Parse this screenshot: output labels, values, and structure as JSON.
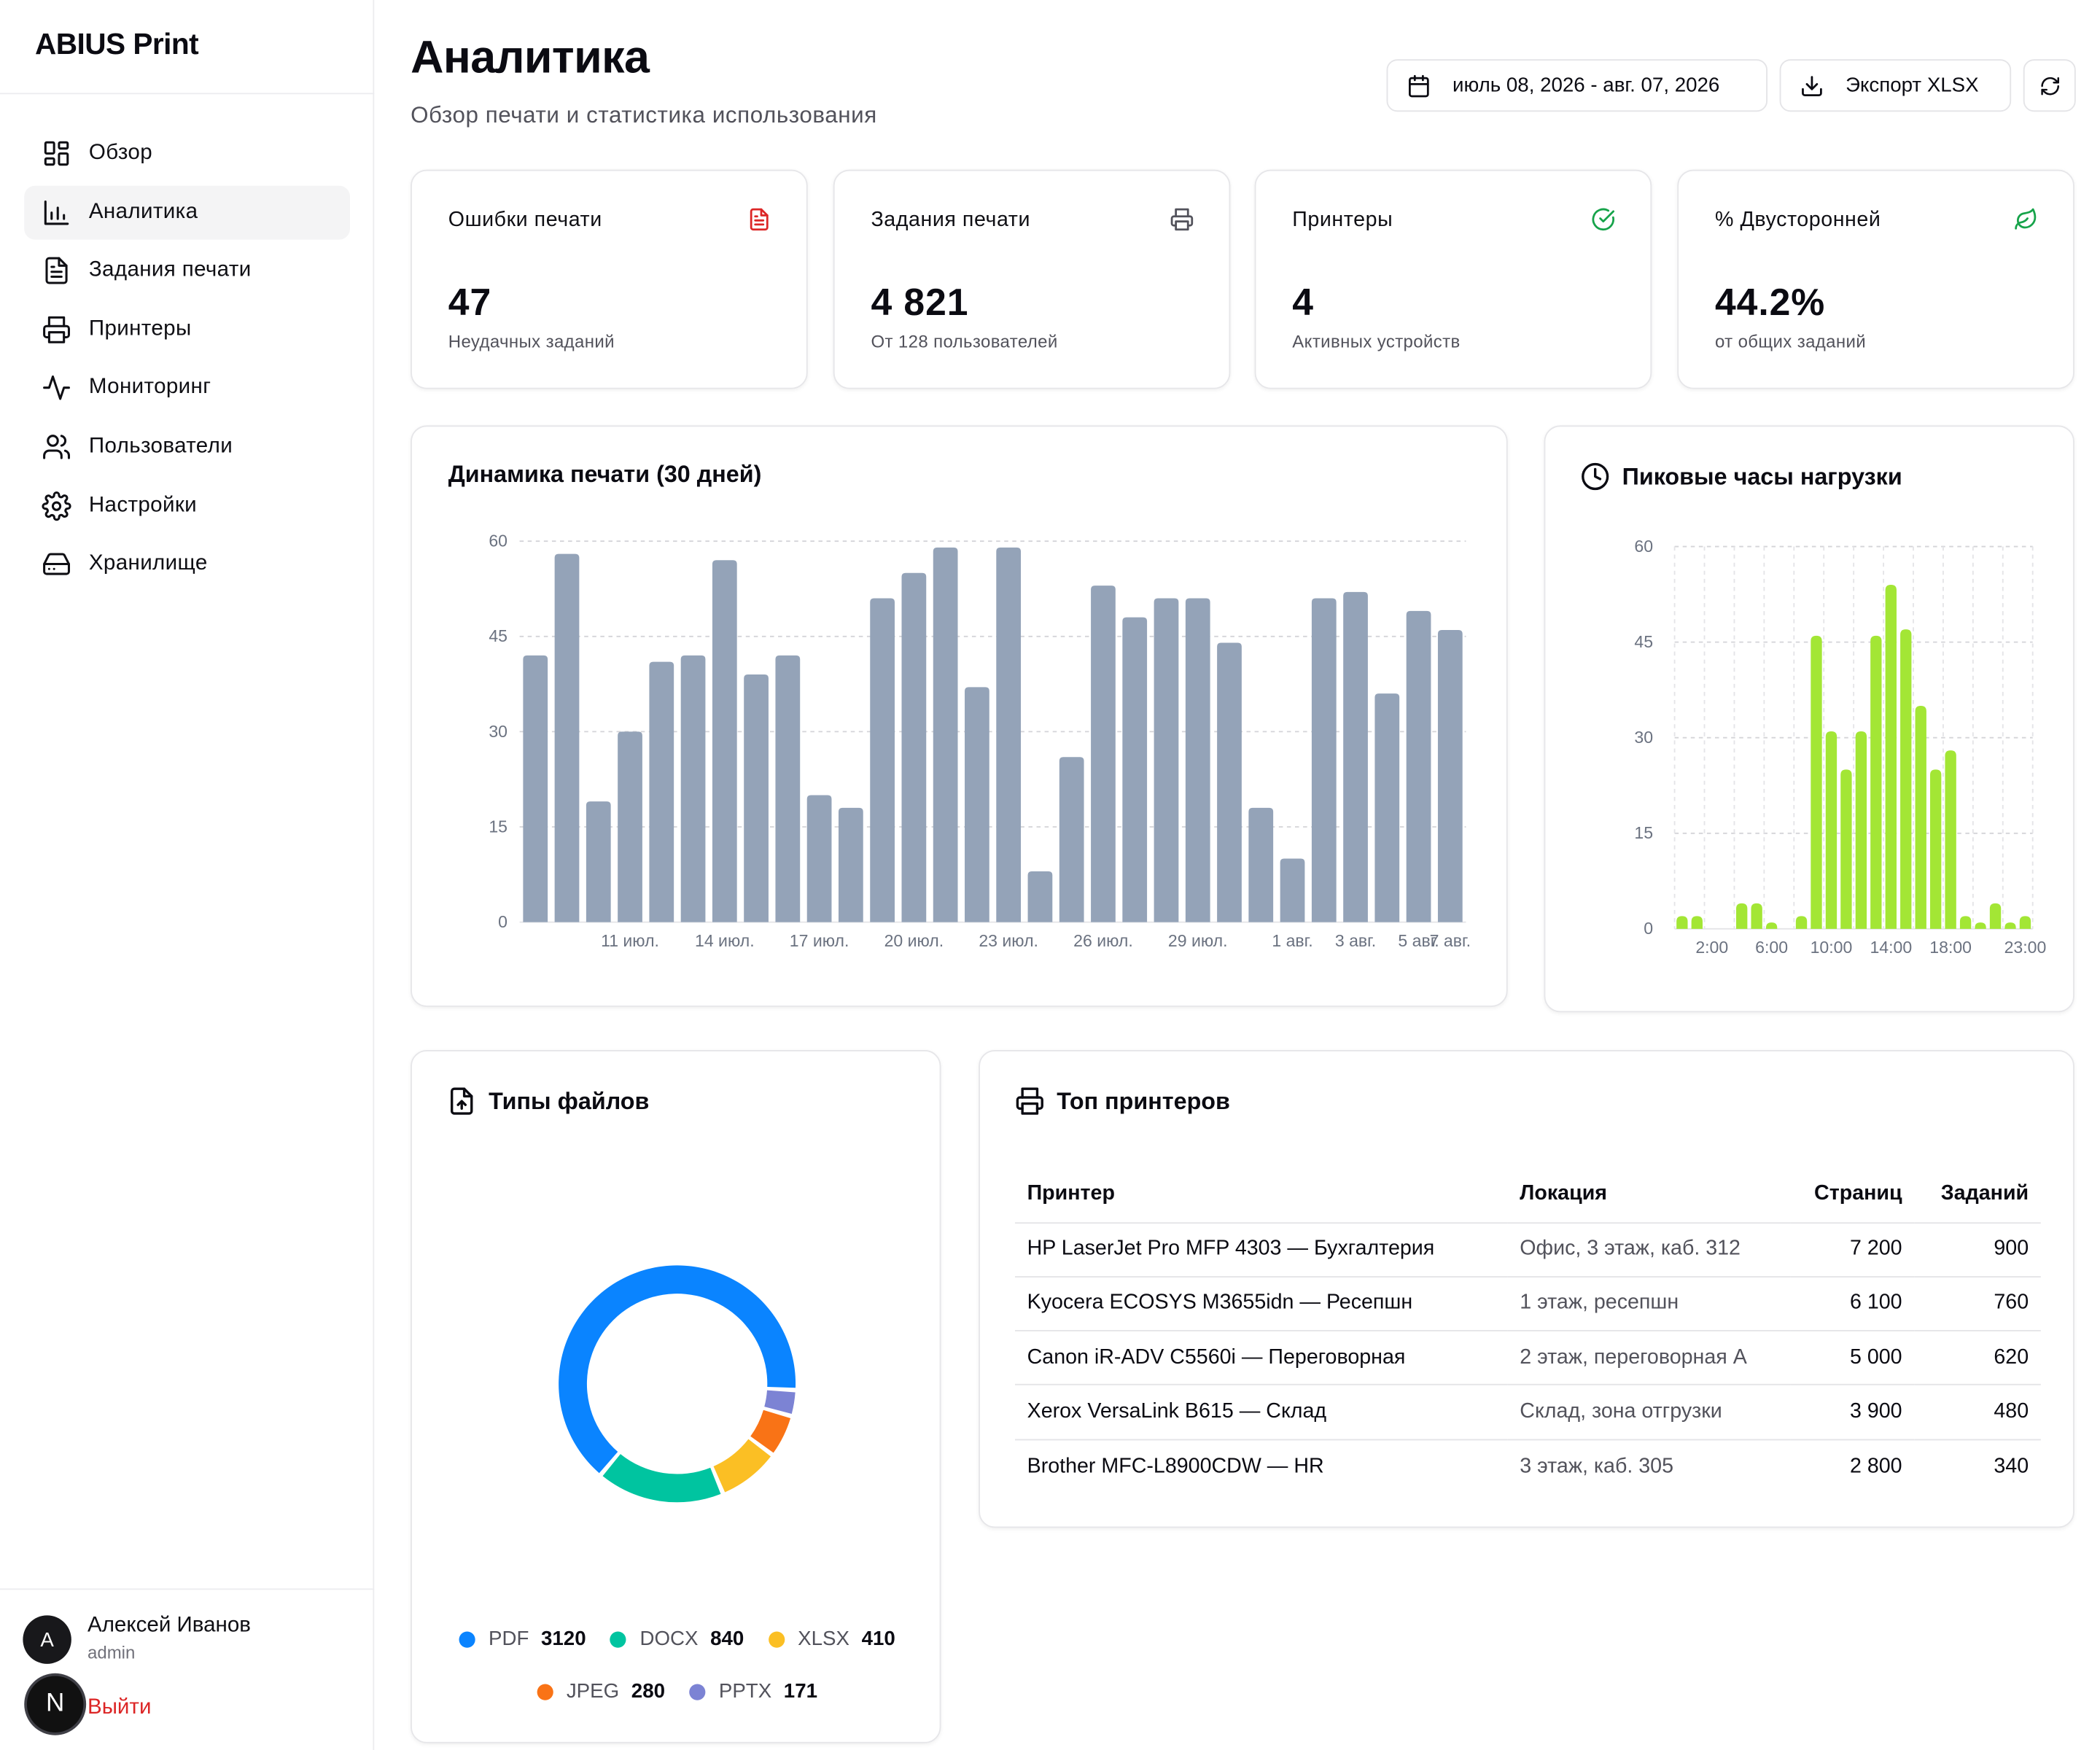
{
  "brand": "ABIUS Print",
  "nav": [
    {
      "label": "Обзор",
      "icon": "dashboard-icon",
      "active": false
    },
    {
      "label": "Аналитика",
      "icon": "bar-chart-icon",
      "active": true
    },
    {
      "label": "Задания печати",
      "icon": "file-text-icon",
      "active": false
    },
    {
      "label": "Принтеры",
      "icon": "printer-icon",
      "active": false
    },
    {
      "label": "Мониторинг",
      "icon": "activity-icon",
      "active": false
    },
    {
      "label": "Пользователи",
      "icon": "users-icon",
      "active": false
    },
    {
      "label": "Настройки",
      "icon": "gear-icon",
      "active": false
    },
    {
      "label": "Хранилище",
      "icon": "hard-drive-icon",
      "active": false
    }
  ],
  "user": {
    "initial": "A",
    "name": "Алексей Иванов",
    "role": "admin",
    "badge": "N",
    "logout": "Выйти"
  },
  "header": {
    "title": "Аналитика",
    "subtitle": "Обзор печати и статистика использования",
    "date_range": "июль 08, 2026 - авг. 07, 2026",
    "export_label": "Экспорт XLSX"
  },
  "stats": [
    {
      "title": "Ошибки печати",
      "value": "47",
      "sub": "Неудачных заданий",
      "icon": "file-error-icon",
      "color": "#dc2626"
    },
    {
      "title": "Задания печати",
      "value": "4 821",
      "sub": "От 128 пользователей",
      "icon": "printer-icon",
      "color": "#52525b"
    },
    {
      "title": "Принтеры",
      "value": "4",
      "sub": "Активных устройств",
      "icon": "check-circle-icon",
      "color": "#16a34a"
    },
    {
      "title": "% Двусторонней",
      "value": "44.2%",
      "sub": "от общих заданий",
      "icon": "leaf-icon",
      "color": "#16a34a"
    }
  ],
  "dynamics": {
    "title": "Динамика печати (30 дней)"
  },
  "peak": {
    "title": "Пиковые часы нагрузки"
  },
  "filetypes": {
    "title": "Типы файлов"
  },
  "top_printers": {
    "title": "Топ принтеров",
    "columns": [
      "Принтер",
      "Локация",
      "Страниц",
      "Заданий"
    ],
    "rows": [
      [
        "HP LaserJet Pro MFP 4303 — Бухгалтерия",
        "Офис, 3 этаж, каб. 312",
        "7 200",
        "900"
      ],
      [
        "Kyocera ECOSYS M3655idn — Ресепшн",
        "1 этаж, ресепшн",
        "6 100",
        "760"
      ],
      [
        "Canon iR-ADV C5560i — Переговорная",
        "2 этаж, переговорная А",
        "5 000",
        "620"
      ],
      [
        "Xerox VersaLink B615 — Склад",
        "Склад, зона отгрузки",
        "3 900",
        "480"
      ],
      [
        "Brother MFC-L8900CDW — HR",
        "3 этаж, каб. 305",
        "2 800",
        "340"
      ]
    ]
  },
  "chart_data": [
    {
      "type": "bar",
      "title": "Динамика печати (30 дней)",
      "xlabel": "",
      "ylabel": "",
      "ylim": [
        0,
        60
      ],
      "yticks": [
        0,
        15,
        30,
        45,
        60
      ],
      "grid": true,
      "color": "#94a3b8",
      "xtick_labels": [
        "11 июл.",
        "14 июл.",
        "17 июл.",
        "20 июл.",
        "23 июл.",
        "26 июл.",
        "29 июл.",
        "1 авг.",
        "3 авг.",
        "5 авг.",
        "7 авг."
      ],
      "categories": [
        "08.07",
        "09.07",
        "10.07",
        "11.07",
        "12.07",
        "13.07",
        "14.07",
        "15.07",
        "16.07",
        "17.07",
        "18.07",
        "19.07",
        "20.07",
        "21.07",
        "22.07",
        "23.07",
        "24.07",
        "25.07",
        "26.07",
        "27.07",
        "28.07",
        "29.07",
        "30.07",
        "31.07",
        "01.08",
        "02.08",
        "03.08",
        "04.08",
        "05.08",
        "06.08"
      ],
      "values": [
        42,
        58,
        19,
        30,
        41,
        42,
        57,
        39,
        42,
        20,
        18,
        51,
        55,
        59,
        37,
        59,
        8,
        26,
        53,
        48,
        51,
        51,
        44,
        18,
        10,
        51,
        52,
        36,
        49,
        46
      ]
    },
    {
      "type": "bar",
      "title": "Пиковые часы нагрузки",
      "xlabel": "",
      "ylabel": "",
      "ylim": [
        0,
        60
      ],
      "yticks": [
        0,
        15,
        30,
        45,
        60
      ],
      "grid": true,
      "color": "#a3e635",
      "xtick_labels": [
        "2:00",
        "6:00",
        "10:00",
        "14:00",
        "18:00",
        "23:00"
      ],
      "categories": [
        "0:00",
        "1:00",
        "2:00",
        "3:00",
        "4:00",
        "5:00",
        "6:00",
        "7:00",
        "8:00",
        "9:00",
        "10:00",
        "11:00",
        "12:00",
        "13:00",
        "14:00",
        "15:00",
        "16:00",
        "17:00",
        "18:00",
        "19:00",
        "20:00",
        "21:00",
        "22:00",
        "23:00"
      ],
      "values": [
        2,
        2,
        0,
        0,
        4,
        4,
        1,
        0,
        2,
        46,
        31,
        25,
        31,
        46,
        54,
        47,
        35,
        25,
        28,
        2,
        1,
        4,
        1,
        2
      ]
    },
    {
      "type": "pie",
      "title": "Типы файлов",
      "labels": [
        "PDF",
        "DOCX",
        "XLSX",
        "JPEG",
        "PPTX"
      ],
      "values": [
        3120,
        840,
        410,
        280,
        171
      ],
      "colors": [
        "#0a84ff",
        "#00c4a0",
        "#fbbf24",
        "#f97316",
        "#7c83d4"
      ]
    }
  ]
}
